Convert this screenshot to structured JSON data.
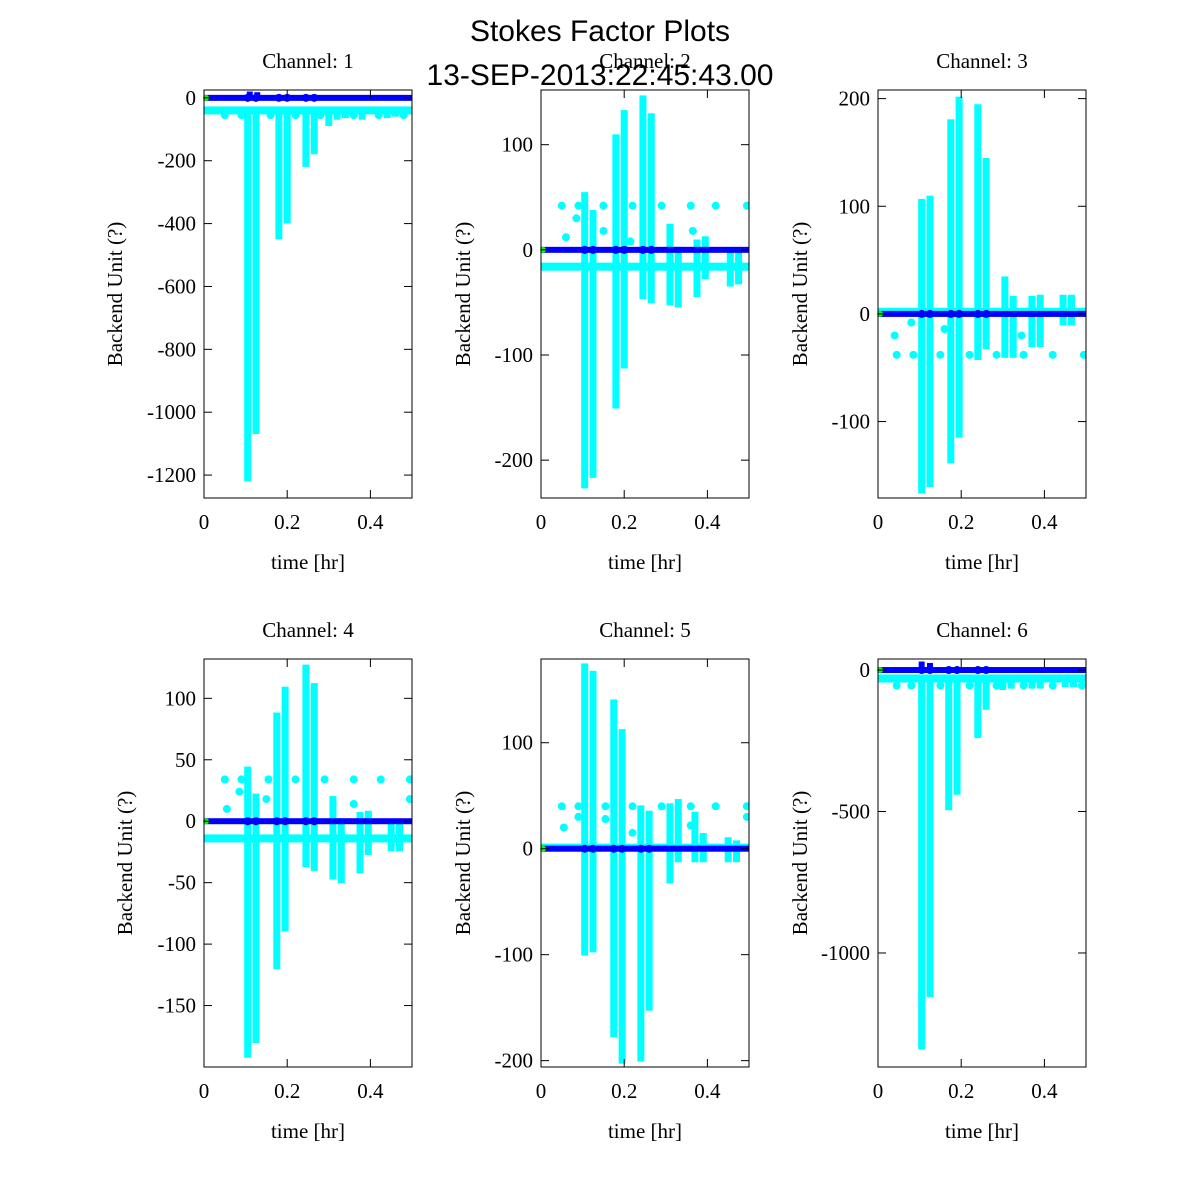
{
  "chart_data": {
    "type": "scatter",
    "title": "Stokes Factor Plots",
    "subtitle": "13-SEP-2013:22:45:43.00",
    "colors": {
      "scatter": "#00ffff",
      "mean_line": "#0000ff",
      "start_marker": "#00ff00",
      "axes": "#000000"
    },
    "panels": [
      {
        "title": "Channel: 1",
        "xlabel": "time [hr]",
        "ylabel": "Backend Unit (?)",
        "xlim": [
          0,
          0.5
        ],
        "xticks": [
          0,
          0.2,
          0.4
        ],
        "xtick_labels": [
          "0",
          "0.2",
          "0.4"
        ],
        "ylim": [
          -1273,
          25
        ],
        "yticks": [
          0,
          -200,
          -400,
          -600,
          -800,
          -1000,
          -1200
        ],
        "ytick_labels": [
          "0",
          "-200",
          "-400",
          "-600",
          "-800",
          "-1000",
          "-1200"
        ],
        "baseline": -40,
        "mean": 0,
        "spikes": [
          {
            "x": 0.105,
            "min": -1210,
            "max": -40
          },
          {
            "x": 0.125,
            "min": -1060,
            "max": -40
          },
          {
            "x": 0.18,
            "min": -440,
            "max": -40
          },
          {
            "x": 0.2,
            "min": -390,
            "max": -40
          },
          {
            "x": 0.245,
            "min": -210,
            "max": -40
          },
          {
            "x": 0.265,
            "min": -170,
            "max": -40
          },
          {
            "x": 0.3,
            "min": -80,
            "max": -40
          },
          {
            "x": 0.32,
            "min": -60,
            "max": -40
          },
          {
            "x": 0.34,
            "min": -55,
            "max": -40
          },
          {
            "x": 0.38,
            "min": -60,
            "max": -40
          },
          {
            "x": 0.44,
            "min": -55,
            "max": -40
          },
          {
            "x": 0.46,
            "min": -50,
            "max": -40
          }
        ],
        "dots": [
          {
            "x": 0.05,
            "y": -55
          },
          {
            "x": 0.09,
            "y": -55
          },
          {
            "x": 0.16,
            "y": -55
          },
          {
            "x": 0.22,
            "y": -55
          },
          {
            "x": 0.28,
            "y": -55
          },
          {
            "x": 0.36,
            "y": -55
          },
          {
            "x": 0.42,
            "y": -55
          },
          {
            "x": 0.48,
            "y": -55
          }
        ],
        "blue_spikes": [
          {
            "x": 0.11,
            "y": 20
          },
          {
            "x": 0.128,
            "y": 18
          },
          {
            "x": 0.175,
            "y": 8
          },
          {
            "x": 0.205,
            "y": 6
          },
          {
            "x": 0.25,
            "y": 3
          }
        ]
      },
      {
        "title": "Channel: 2",
        "xlabel": "time [hr]",
        "ylabel": "Backend Unit (?)",
        "xlim": [
          0,
          0.5
        ],
        "xticks": [
          0,
          0.2,
          0.4
        ],
        "xtick_labels": [
          "0",
          "0.2",
          "0.4"
        ],
        "ylim": [
          -236,
          152
        ],
        "yticks": [
          100,
          0,
          -100,
          -200
        ],
        "ytick_labels": [
          "100",
          "0",
          "-100",
          "-200"
        ],
        "baseline": -16,
        "mean": 0,
        "spikes": [
          {
            "x": 0.105,
            "min": -224,
            "max": 52
          },
          {
            "x": 0.125,
            "min": -214,
            "max": 35
          },
          {
            "x": 0.18,
            "min": -148,
            "max": 107
          },
          {
            "x": 0.2,
            "min": -110,
            "max": 130
          },
          {
            "x": 0.245,
            "min": -44,
            "max": 144
          },
          {
            "x": 0.265,
            "min": -48,
            "max": 127
          },
          {
            "x": 0.31,
            "min": -50,
            "max": 22
          },
          {
            "x": 0.33,
            "min": -52,
            "max": 0
          },
          {
            "x": 0.375,
            "min": -42,
            "max": 7
          },
          {
            "x": 0.395,
            "min": -25,
            "max": 10
          },
          {
            "x": 0.455,
            "min": -32,
            "max": -5
          },
          {
            "x": 0.475,
            "min": -30,
            "max": -5
          }
        ],
        "dots": [
          {
            "x": 0.05,
            "y": 42
          },
          {
            "x": 0.09,
            "y": 42
          },
          {
            "x": 0.15,
            "y": 42
          },
          {
            "x": 0.22,
            "y": 42
          },
          {
            "x": 0.29,
            "y": 42
          },
          {
            "x": 0.36,
            "y": 42
          },
          {
            "x": 0.42,
            "y": 42
          },
          {
            "x": 0.495,
            "y": 42
          },
          {
            "x": 0.06,
            "y": 12
          },
          {
            "x": 0.085,
            "y": 30
          },
          {
            "x": 0.15,
            "y": 18
          },
          {
            "x": 0.215,
            "y": 8
          },
          {
            "x": 0.365,
            "y": 18
          }
        ],
        "blue_spikes": []
      },
      {
        "title": "Channel: 3",
        "xlabel": "time [hr]",
        "ylabel": "Backend Unit (?)",
        "xlim": [
          0,
          0.5
        ],
        "xticks": [
          0,
          0.2,
          0.4
        ],
        "xtick_labels": [
          "0",
          "0.2",
          "0.4"
        ],
        "ylim": [
          -171,
          208
        ],
        "yticks": [
          200,
          100,
          0,
          -100
        ],
        "ytick_labels": [
          "200",
          "100",
          "0",
          "-100"
        ],
        "baseline": 2,
        "mean": 0,
        "spikes": [
          {
            "x": 0.105,
            "min": -164,
            "max": 104
          },
          {
            "x": 0.125,
            "min": -158,
            "max": 107
          },
          {
            "x": 0.175,
            "min": -136,
            "max": 178
          },
          {
            "x": 0.195,
            "min": -112,
            "max": 199
          },
          {
            "x": 0.24,
            "min": -40,
            "max": 192
          },
          {
            "x": 0.26,
            "min": -30,
            "max": 142
          },
          {
            "x": 0.305,
            "min": -38,
            "max": 32
          },
          {
            "x": 0.325,
            "min": -38,
            "max": 14
          },
          {
            "x": 0.37,
            "min": -28,
            "max": 14
          },
          {
            "x": 0.39,
            "min": -28,
            "max": 15
          },
          {
            "x": 0.445,
            "min": -8,
            "max": 15
          },
          {
            "x": 0.465,
            "min": -8,
            "max": 15
          }
        ],
        "dots": [
          {
            "x": 0.045,
            "y": -38
          },
          {
            "x": 0.085,
            "y": -38
          },
          {
            "x": 0.15,
            "y": -38
          },
          {
            "x": 0.22,
            "y": -38
          },
          {
            "x": 0.285,
            "y": -38
          },
          {
            "x": 0.35,
            "y": -38
          },
          {
            "x": 0.42,
            "y": -38
          },
          {
            "x": 0.495,
            "y": -38
          },
          {
            "x": 0.04,
            "y": -20
          },
          {
            "x": 0.08,
            "y": -8
          },
          {
            "x": 0.16,
            "y": -14
          },
          {
            "x": 0.345,
            "y": -20
          }
        ],
        "blue_spikes": []
      },
      {
        "title": "Channel: 4",
        "xlabel": "time [hr]",
        "ylabel": "Backend Unit (?)",
        "xlim": [
          0,
          0.5
        ],
        "xticks": [
          0,
          0.2,
          0.4
        ],
        "xtick_labels": [
          "0",
          "0.2",
          "0.4"
        ],
        "ylim": [
          -200,
          132
        ],
        "yticks": [
          100,
          50,
          0,
          -50,
          -100,
          -150
        ],
        "ytick_labels": [
          "100",
          "50",
          "0",
          "-50",
          "-100",
          "-150"
        ],
        "baseline": -14,
        "mean": 0,
        "spikes": [
          {
            "x": 0.105,
            "min": -190,
            "max": 42
          },
          {
            "x": 0.125,
            "min": -178,
            "max": 20
          },
          {
            "x": 0.175,
            "min": -118,
            "max": 86
          },
          {
            "x": 0.195,
            "min": -87,
            "max": 107
          },
          {
            "x": 0.245,
            "min": -35,
            "max": 125
          },
          {
            "x": 0.265,
            "min": -38,
            "max": 110
          },
          {
            "x": 0.31,
            "min": -45,
            "max": 18
          },
          {
            "x": 0.33,
            "min": -48,
            "max": 0
          },
          {
            "x": 0.375,
            "min": -40,
            "max": 5
          },
          {
            "x": 0.395,
            "min": -25,
            "max": 6
          },
          {
            "x": 0.45,
            "min": -22,
            "max": -4
          },
          {
            "x": 0.47,
            "min": -22,
            "max": -4
          }
        ],
        "dots": [
          {
            "x": 0.05,
            "y": 34
          },
          {
            "x": 0.09,
            "y": 34
          },
          {
            "x": 0.155,
            "y": 34
          },
          {
            "x": 0.22,
            "y": 34
          },
          {
            "x": 0.29,
            "y": 34
          },
          {
            "x": 0.36,
            "y": 34
          },
          {
            "x": 0.425,
            "y": 34
          },
          {
            "x": 0.495,
            "y": 34
          },
          {
            "x": 0.055,
            "y": 10
          },
          {
            "x": 0.085,
            "y": 24
          },
          {
            "x": 0.15,
            "y": 18
          },
          {
            "x": 0.36,
            "y": 14
          },
          {
            "x": 0.495,
            "y": 18
          }
        ],
        "blue_spikes": []
      },
      {
        "title": "Channel: 5",
        "xlabel": "time [hr]",
        "ylabel": "Backend Unit (?)",
        "xlim": [
          0,
          0.5
        ],
        "xticks": [
          0,
          0.2,
          0.4
        ],
        "xtick_labels": [
          "0",
          "0.2",
          "0.4"
        ],
        "ylim": [
          -206,
          179
        ],
        "yticks": [
          100,
          0,
          -100,
          -200
        ],
        "ytick_labels": [
          "100",
          "0",
          "-100",
          "-200"
        ],
        "baseline": 1,
        "mean": 0,
        "spikes": [
          {
            "x": 0.105,
            "min": -98,
            "max": 172
          },
          {
            "x": 0.125,
            "min": -95,
            "max": 165
          },
          {
            "x": 0.175,
            "min": -175,
            "max": 138
          },
          {
            "x": 0.195,
            "min": -200,
            "max": 110
          },
          {
            "x": 0.24,
            "min": -198,
            "max": 38
          },
          {
            "x": 0.26,
            "min": -150,
            "max": 33
          },
          {
            "x": 0.31,
            "min": -30,
            "max": 40
          },
          {
            "x": 0.33,
            "min": -10,
            "max": 44
          },
          {
            "x": 0.37,
            "min": -10,
            "max": 32
          },
          {
            "x": 0.39,
            "min": -10,
            "max": 12
          },
          {
            "x": 0.45,
            "min": -10,
            "max": 8
          },
          {
            "x": 0.47,
            "min": -10,
            "max": 5
          }
        ],
        "dots": [
          {
            "x": 0.05,
            "y": 40
          },
          {
            "x": 0.09,
            "y": 40
          },
          {
            "x": 0.155,
            "y": 40
          },
          {
            "x": 0.22,
            "y": 40
          },
          {
            "x": 0.29,
            "y": 40
          },
          {
            "x": 0.36,
            "y": 40
          },
          {
            "x": 0.42,
            "y": 40
          },
          {
            "x": 0.495,
            "y": 40
          },
          {
            "x": 0.055,
            "y": 20
          },
          {
            "x": 0.09,
            "y": 30
          },
          {
            "x": 0.155,
            "y": 28
          },
          {
            "x": 0.22,
            "y": 15
          },
          {
            "x": 0.36,
            "y": 22
          },
          {
            "x": 0.495,
            "y": 30
          }
        ],
        "blue_spikes": []
      },
      {
        "title": "Channel: 6",
        "xlabel": "time [hr]",
        "ylabel": "Backend Unit (?)",
        "xlim": [
          0,
          0.5
        ],
        "xticks": [
          0,
          0.2,
          0.4
        ],
        "xtick_labels": [
          "0",
          "0.2",
          "0.4"
        ],
        "ylim": [
          -1403,
          39
        ],
        "yticks": [
          0,
          -500,
          -1000
        ],
        "ytick_labels": [
          "0",
          "-500",
          "-1000"
        ],
        "baseline": -30,
        "mean": 0,
        "spikes": [
          {
            "x": 0.105,
            "min": -1330,
            "max": -30
          },
          {
            "x": 0.125,
            "min": -1145,
            "max": -30
          },
          {
            "x": 0.17,
            "min": -485,
            "max": -30
          },
          {
            "x": 0.19,
            "min": -430,
            "max": -30
          },
          {
            "x": 0.24,
            "min": -230,
            "max": -30
          },
          {
            "x": 0.26,
            "min": -130,
            "max": -30
          },
          {
            "x": 0.3,
            "min": -60,
            "max": -30
          },
          {
            "x": 0.32,
            "min": -55,
            "max": -30
          },
          {
            "x": 0.37,
            "min": -55,
            "max": -30
          },
          {
            "x": 0.39,
            "min": -55,
            "max": -30
          },
          {
            "x": 0.45,
            "min": -50,
            "max": -30
          },
          {
            "x": 0.47,
            "min": -50,
            "max": -30
          }
        ],
        "dots": [
          {
            "x": 0.045,
            "y": -55
          },
          {
            "x": 0.08,
            "y": -55
          },
          {
            "x": 0.15,
            "y": -55
          },
          {
            "x": 0.22,
            "y": -55
          },
          {
            "x": 0.285,
            "y": -55
          },
          {
            "x": 0.35,
            "y": -55
          },
          {
            "x": 0.42,
            "y": -55
          },
          {
            "x": 0.49,
            "y": -55
          }
        ],
        "blue_spikes": [
          {
            "x": 0.105,
            "y": 30
          },
          {
            "x": 0.125,
            "y": 25
          },
          {
            "x": 0.18,
            "y": 10
          },
          {
            "x": 0.2,
            "y": 8
          },
          {
            "x": 0.24,
            "y": 5
          }
        ]
      }
    ]
  }
}
